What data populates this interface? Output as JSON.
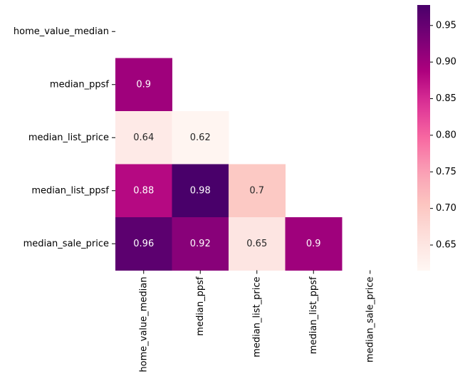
{
  "chart_data": {
    "type": "heatmap",
    "title": "",
    "xlabel": "",
    "ylabel": "",
    "mask": "upper-triangle-including-diagonal",
    "colormap": "RdPu",
    "categories_x": [
      "home_value_median",
      "median_ppsf",
      "median_list_price",
      "median_list_ppsf",
      "median_sale_price"
    ],
    "categories_y": [
      "home_value_median",
      "median_ppsf",
      "median_list_price",
      "median_list_ppsf",
      "median_sale_price"
    ],
    "cells": [
      {
        "row": 1,
        "col": 0,
        "value": 0.9,
        "label": "0.9"
      },
      {
        "row": 2,
        "col": 0,
        "value": 0.64,
        "label": "0.64"
      },
      {
        "row": 2,
        "col": 1,
        "value": 0.62,
        "label": "0.62"
      },
      {
        "row": 3,
        "col": 0,
        "value": 0.88,
        "label": "0.88"
      },
      {
        "row": 3,
        "col": 1,
        "value": 0.98,
        "label": "0.98"
      },
      {
        "row": 3,
        "col": 2,
        "value": 0.7,
        "label": "0.7"
      },
      {
        "row": 4,
        "col": 0,
        "value": 0.96,
        "label": "0.96"
      },
      {
        "row": 4,
        "col": 1,
        "value": 0.92,
        "label": "0.92"
      },
      {
        "row": 4,
        "col": 2,
        "value": 0.65,
        "label": "0.65"
      },
      {
        "row": 4,
        "col": 3,
        "value": 0.9,
        "label": "0.9"
      }
    ],
    "colorbar": {
      "min": 0.615,
      "max": 0.978,
      "ticks": [
        0.65,
        0.7,
        0.75,
        0.8,
        0.85,
        0.9,
        0.95
      ],
      "tick_labels": [
        "0.65",
        "0.70",
        "0.75",
        "0.80",
        "0.85",
        "0.90",
        "0.95"
      ]
    }
  }
}
